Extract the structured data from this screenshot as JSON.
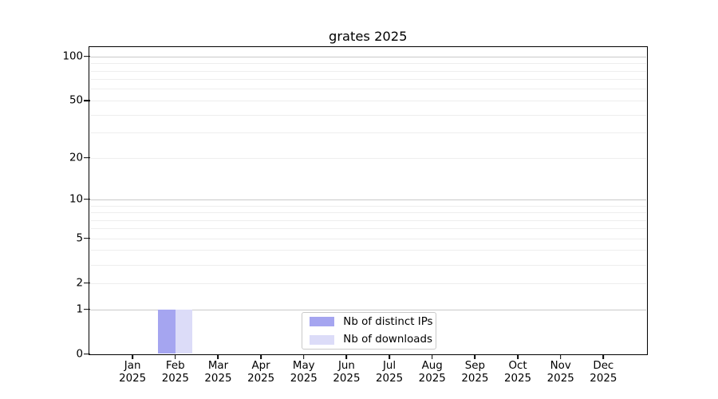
{
  "chart_data": {
    "type": "bar",
    "title": "grates 2025",
    "categories": [
      "Jan",
      "Feb",
      "Mar",
      "Apr",
      "May",
      "Jun",
      "Jul",
      "Aug",
      "Sep",
      "Oct",
      "Nov",
      "Dec"
    ],
    "year": "2025",
    "series": [
      {
        "name": "Nb of distinct IPs",
        "color": "#a5a5f0",
        "values": [
          0,
          1,
          0,
          0,
          0,
          0,
          0,
          0,
          0,
          0,
          0,
          0
        ]
      },
      {
        "name": "Nb of downloads",
        "color": "#dcdcf8",
        "values": [
          0,
          1,
          0,
          0,
          0,
          0,
          0,
          0,
          0,
          0,
          0,
          0
        ]
      }
    ],
    "y_axis": {
      "scale": "log1p",
      "major_ticks": [
        0,
        1,
        2,
        5,
        10,
        20,
        50,
        100
      ],
      "decade_gridlines": [
        1,
        10,
        100
      ],
      "minor_gridlines": [
        2,
        3,
        4,
        5,
        6,
        7,
        8,
        9,
        20,
        30,
        40,
        50,
        60,
        70,
        80,
        90
      ],
      "range": [
        0,
        115
      ]
    },
    "x_axis": {
      "tick_count": 12
    },
    "legend": {
      "location": "bottom-center",
      "entries": [
        "Nb of distinct IPs",
        "Nb of downloads"
      ]
    },
    "grid": true
  },
  "colors": {
    "decade_grid": "#c9c9c9",
    "minor_grid": "#eeeeee",
    "axis": "#000000",
    "legend_border": "#c9c9c9",
    "background": "#ffffff"
  }
}
